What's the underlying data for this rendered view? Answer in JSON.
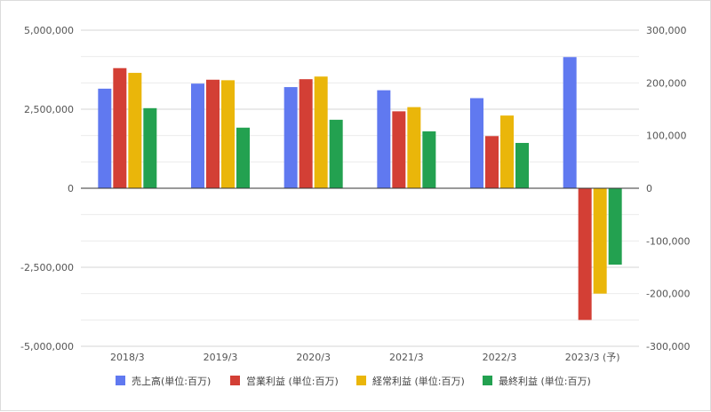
{
  "chart_data": {
    "type": "bar",
    "categories": [
      "2018/3",
      "2019/3",
      "2020/3",
      "2021/3",
      "2022/3",
      "2023/3 (予)"
    ],
    "series": [
      {
        "name": "売上高(単位:百万)",
        "axis": "left",
        "color": "#6079f0",
        "values": [
          3150000,
          3310000,
          3200000,
          3100000,
          2850000,
          4150000
        ]
      },
      {
        "name": "営業利益 (単位:百万)",
        "axis": "right",
        "color": "#d33f35",
        "values": [
          228000,
          206000,
          207000,
          146000,
          99000,
          -250000
        ]
      },
      {
        "name": "経常利益 (単位:百万)",
        "axis": "right",
        "color": "#eab60a",
        "values": [
          219000,
          205000,
          212000,
          154000,
          138000,
          -200000
        ]
      },
      {
        "name": "最終利益 (単位:百万)",
        "axis": "right",
        "color": "#23a150",
        "values": [
          152000,
          115000,
          130000,
          108000,
          86000,
          -145000
        ]
      }
    ],
    "left_axis": {
      "min": -5000000,
      "max": 5000000,
      "ticks": [
        5000000,
        2500000,
        0,
        -2500000,
        -5000000
      ],
      "tick_labels": [
        "5,000,000",
        "2,500,000",
        "0",
        "-2,500,000",
        "-5,000,000"
      ]
    },
    "right_axis": {
      "min": -300000,
      "max": 300000,
      "ticks": [
        300000,
        200000,
        100000,
        0,
        -100000,
        -200000,
        -300000
      ],
      "tick_labels": [
        "300,000",
        "200,000",
        "100,000",
        "0",
        "-100,000",
        "-200,000",
        "-300,000"
      ]
    },
    "grid": true,
    "legend_position": "bottom"
  }
}
